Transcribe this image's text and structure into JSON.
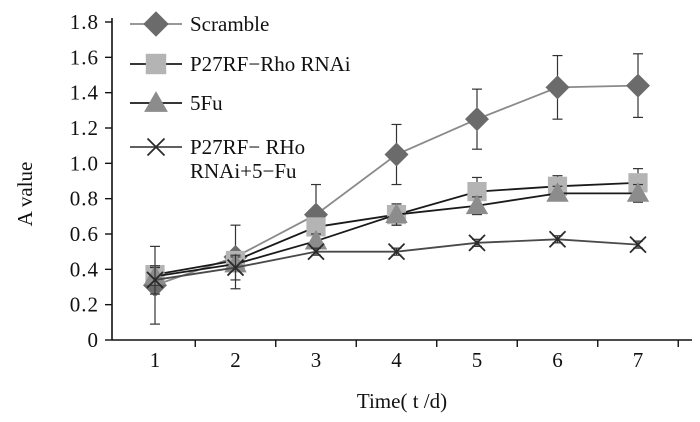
{
  "chart_data": {
    "type": "line",
    "title": "",
    "xlabel": "Time( t /d)",
    "ylabel": "A value",
    "categories": [
      "1",
      "2",
      "3",
      "4",
      "5",
      "6",
      "7"
    ],
    "ylim": [
      0,
      1.8
    ],
    "yticks": [
      "0",
      "0.2",
      "0.4",
      "0.6",
      "0.8",
      "1.0",
      "1.2",
      "1.4",
      "1.6",
      "1.8"
    ],
    "grid": false,
    "legend_position": "top-left",
    "series": [
      {
        "name": "Scramble",
        "legend_lines": [
          "Scramble"
        ],
        "marker": "diamond",
        "color": "#8a8a8a",
        "marker_color": "#6b6b6b",
        "values": [
          0.31,
          0.47,
          0.71,
          1.05,
          1.25,
          1.43,
          1.44
        ],
        "errors": [
          0.22,
          0.18,
          0.17,
          0.17,
          0.17,
          0.18,
          0.18
        ]
      },
      {
        "name": "P27RF−Rho RNAi",
        "legend_lines": [
          "P27RF−Rho RNAi"
        ],
        "marker": "square",
        "color": "#1a1a1a",
        "marker_color": "#b4b4b4",
        "values": [
          0.37,
          0.45,
          0.64,
          0.71,
          0.84,
          0.87,
          0.89
        ],
        "errors": [
          0.05,
          0.04,
          0.05,
          0.06,
          0.08,
          0.06,
          0.08
        ]
      },
      {
        "name": "5Fu",
        "legend_lines": [
          "5Fu"
        ],
        "marker": "triangle",
        "color": "#1a1a1a",
        "marker_color": "#8c8c8c",
        "values": [
          0.36,
          0.43,
          0.56,
          0.71,
          0.76,
          0.83,
          0.83
        ],
        "errors": [
          0.05,
          0.04,
          0.04,
          0.06,
          0.05,
          0.04,
          0.05
        ]
      },
      {
        "name": "P27RF− RHo RNAi+5−Fu",
        "legend_lines": [
          "P27RF− RHo",
          "RNAi+5−Fu"
        ],
        "marker": "x",
        "color": "#4a4a4a",
        "marker_color": "#2a2a2a",
        "values": [
          0.34,
          0.41,
          0.5,
          0.5,
          0.55,
          0.57,
          0.54
        ],
        "errors": [
          0.08,
          0.07,
          0.02,
          0.02,
          0.02,
          0.02,
          0.02
        ]
      }
    ]
  }
}
